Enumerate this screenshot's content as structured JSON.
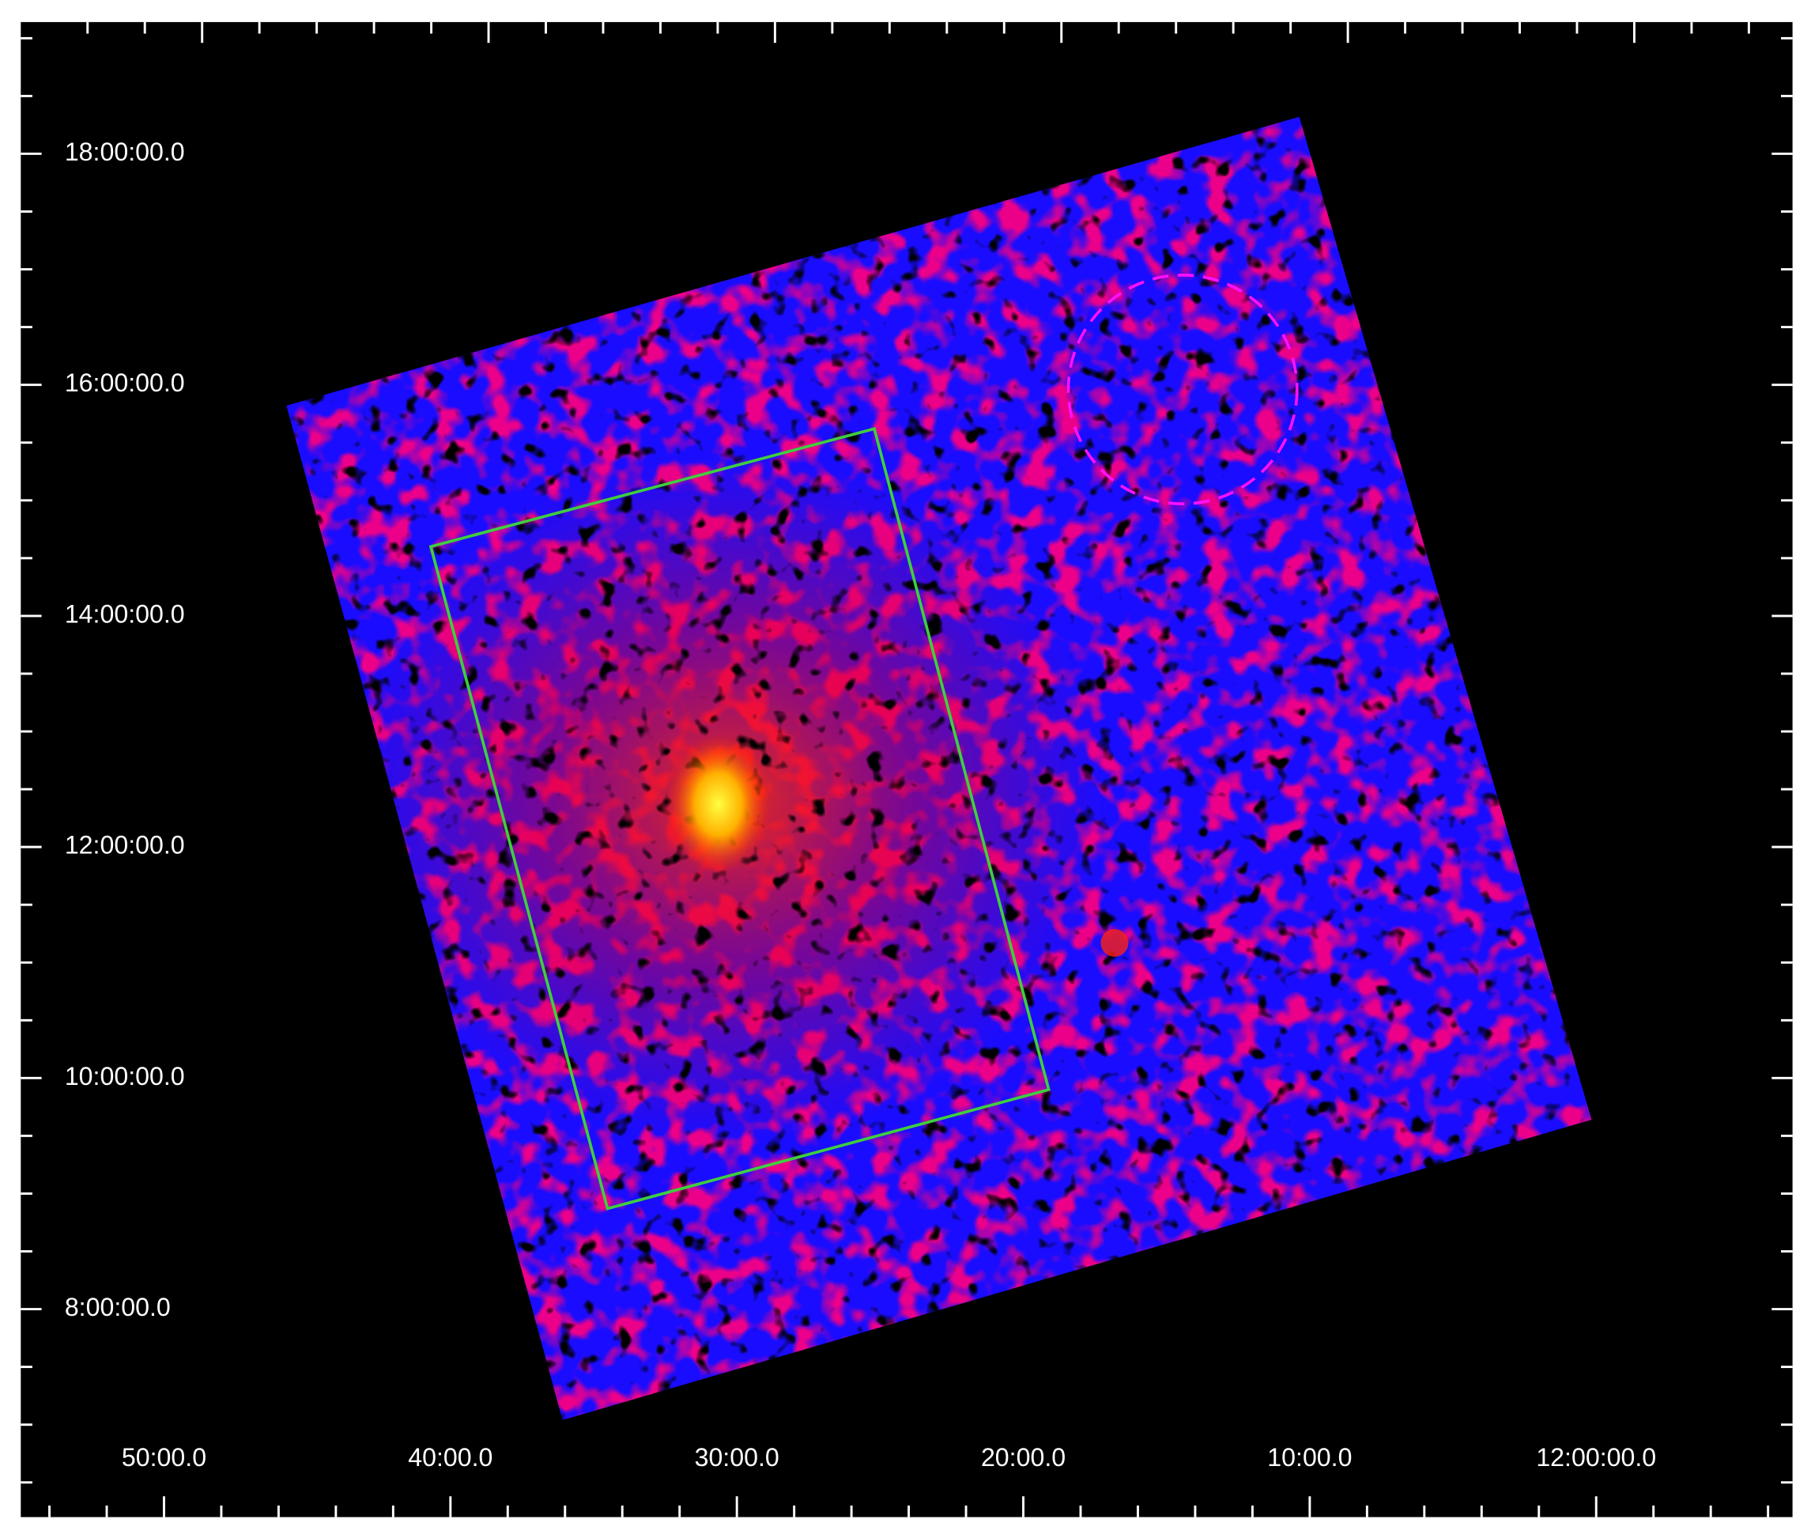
{
  "axes": {
    "y_labels": [
      "18:00:00.0",
      "16:00:00.0",
      "14:00:00.0",
      "12:00:00.0",
      "10:00:00.0",
      "8:00:00.0"
    ],
    "x_labels": [
      "50:00.0",
      "40:00.0",
      "30:00.0",
      "20:00.0",
      "10:00.0",
      "12:00:00.0"
    ]
  }
}
